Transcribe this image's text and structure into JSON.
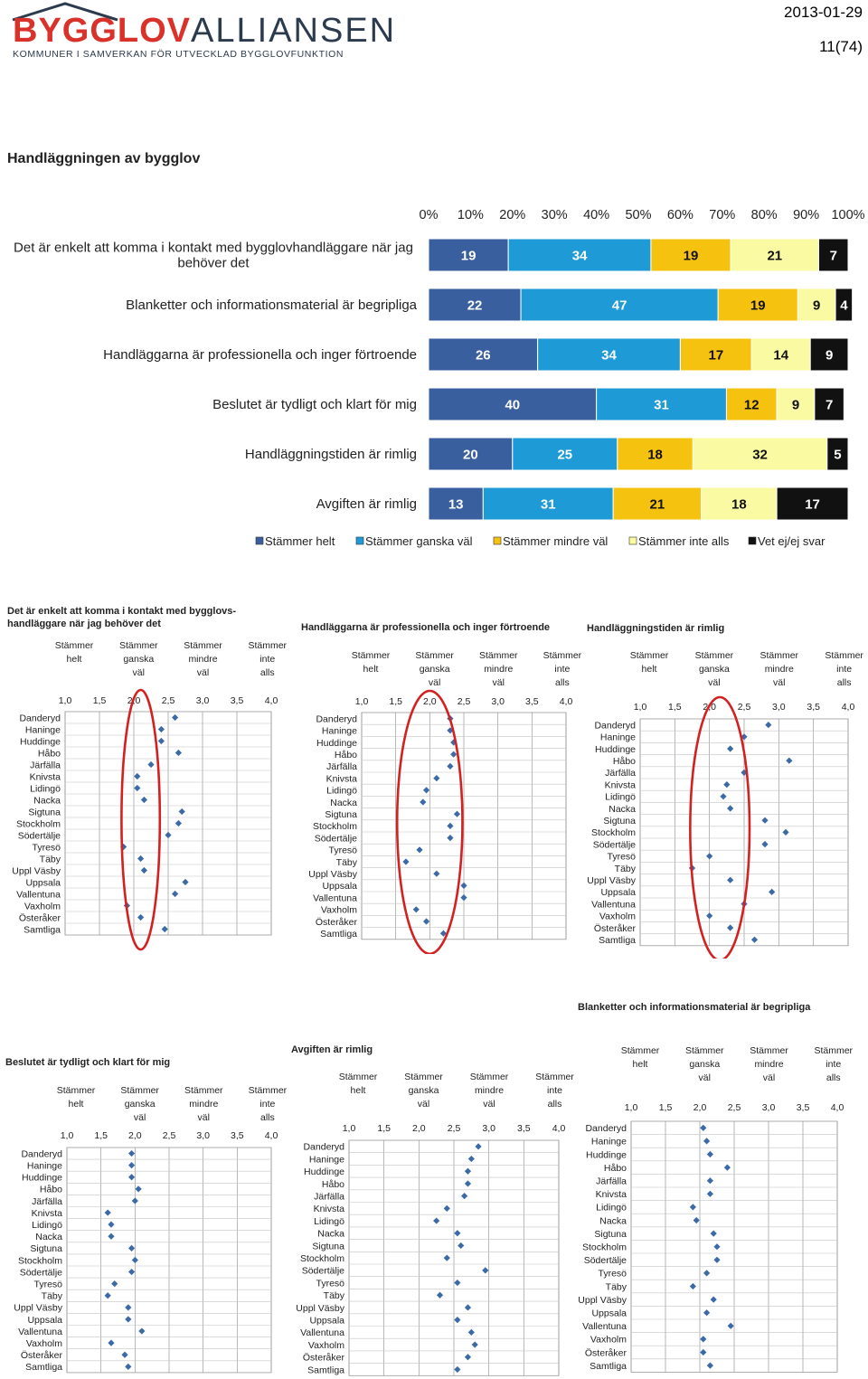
{
  "header": {
    "logo_part1": "BYGGLOV",
    "logo_part2": "ALLIANSEN",
    "logo_tagline": "KOMMUNER I SAMVERKAN FÖR UTVECKLAD BYGGLOVFUNKTION",
    "date": "2013-01-29",
    "page": "11(74)"
  },
  "section_title": "Handläggningen av bygglov",
  "chart_data": [
    {
      "type": "bar",
      "orientation": "horizontal-stacked-100",
      "x_ticks": [
        "0%",
        "10%",
        "20%",
        "30%",
        "40%",
        "50%",
        "60%",
        "70%",
        "80%",
        "90%",
        "100%"
      ],
      "xlim": [
        0,
        100
      ],
      "categories": [
        "Det är enkelt att komma i kontakt med bygglovhandläggare när jag|behöver det",
        "Blanketter och informationsmaterial är begripliga",
        "Handläggarna är professionella och inger förtroende",
        "Beslutet är tydligt och klart för mig",
        "Handläggningstiden är rimlig",
        "Avgiften är rimlig"
      ],
      "series": [
        {
          "name": "Stämmer helt",
          "color": "#3a5f9e",
          "values": [
            19,
            22,
            26,
            40,
            20,
            13
          ]
        },
        {
          "name": "Stämmer ganska väl",
          "color": "#1e9bd6",
          "values": [
            34,
            47,
            34,
            31,
            25,
            31
          ]
        },
        {
          "name": "Stämmer mindre väl",
          "color": "#f5c20f",
          "values": [
            19,
            19,
            17,
            12,
            18,
            21
          ]
        },
        {
          "name": "Stämmer inte alls",
          "color": "#fafaa2",
          "values": [
            21,
            9,
            14,
            9,
            32,
            18
          ]
        },
        {
          "name": "Vet ej/ej svar",
          "color": "#111111",
          "values": [
            7,
            4,
            9,
            7,
            5,
            17
          ]
        }
      ],
      "legend": "bottom"
    },
    {
      "type": "scatter",
      "title": "Det är enkelt att komma i kontakt med bygglovs-|handläggare när jag behöver det",
      "scale_labels": [
        "Stämmer|helt",
        "Stämmer|ganska|väl",
        "Stämmer|mindre|väl",
        "Stämmer|inte|alls"
      ],
      "x_ticks": [
        "1,0",
        "1,5",
        "2,0",
        "2,5",
        "3,0",
        "3,5",
        "4,0"
      ],
      "xlim": [
        1,
        4
      ],
      "categories": [
        "Danderyd",
        "Haninge",
        "Huddinge",
        "Håbo",
        "Järfälla",
        "Knivsta",
        "Lidingö",
        "Nacka",
        "Sigtuna",
        "Stockholm",
        "Södertälje",
        "Tyresö",
        "Täby",
        "Uppl Väsby",
        "Uppsala",
        "Vallentuna",
        "Vaxholm",
        "Österåker",
        "Samtliga"
      ],
      "values": [
        2.6,
        2.4,
        2.4,
        2.65,
        2.25,
        2.05,
        2.05,
        2.15,
        2.7,
        2.65,
        2.5,
        1.85,
        2.1,
        2.15,
        2.75,
        2.6,
        1.9,
        2.1,
        2.45
      ],
      "highlight": [
        1.9,
        2.3
      ]
    },
    {
      "type": "scatter",
      "title": "Handläggarna är professionella och inger förtroende",
      "scale_labels": [
        "Stämmer|helt",
        "Stämmer|ganska|väl",
        "Stämmer|mindre|väl",
        "Stämmer|inte|alls"
      ],
      "x_ticks": [
        "1,0",
        "1,5",
        "2,0",
        "2,5",
        "3,0",
        "3,5",
        "4,0"
      ],
      "xlim": [
        1,
        4
      ],
      "categories": [
        "Danderyd",
        "Haninge",
        "Huddinge",
        "Håbo",
        "Järfälla",
        "Knivsta",
        "Lidingö",
        "Nacka",
        "Sigtuna",
        "Stockholm",
        "Södertälje",
        "Tyresö",
        "Täby",
        "Uppl Väsby",
        "Uppsala",
        "Vallentuna",
        "Vaxholm",
        "Österåker",
        "Samtliga"
      ],
      "values": [
        2.3,
        2.3,
        2.35,
        2.35,
        2.3,
        2.1,
        1.95,
        1.9,
        2.4,
        2.3,
        2.3,
        1.85,
        1.65,
        2.1,
        2.5,
        2.5,
        1.8,
        1.95,
        2.2
      ],
      "highlight": [
        1.6,
        2.4
      ]
    },
    {
      "type": "scatter",
      "title": "Handläggningstiden är rimlig",
      "scale_labels": [
        "Stämmer|helt",
        "Stämmer|ganska|väl",
        "Stämmer|mindre|väl",
        "Stämmer|inte|alls"
      ],
      "x_ticks": [
        "1,0",
        "1,5",
        "2,0",
        "2,5",
        "3,0",
        "3,5",
        "4,0"
      ],
      "xlim": [
        1,
        4
      ],
      "categories": [
        "Danderyd",
        "Haninge",
        "Huddinge",
        "Håbo",
        "Järfälla",
        "Knivsta",
        "Lidingö",
        "Nacka",
        "Sigtuna",
        "Stockholm",
        "Södertälje",
        "Tyresö",
        "Täby",
        "Uppl Väsby",
        "Uppsala",
        "Vallentuna",
        "Vaxholm",
        "Österåker",
        "Samtliga"
      ],
      "values": [
        2.85,
        2.5,
        2.3,
        3.15,
        2.5,
        2.25,
        2.2,
        2.3,
        2.8,
        3.1,
        2.8,
        2.0,
        1.75,
        2.3,
        2.9,
        2.5,
        2.0,
        2.3,
        2.65
      ],
      "highlight": [
        1.8,
        2.5
      ]
    },
    {
      "type": "scatter",
      "title": "Beslutet är tydligt och klart för mig",
      "scale_labels": [
        "Stämmer|helt",
        "Stämmer|ganska|väl",
        "Stämmer|mindre|väl",
        "Stämmer|inte|alls"
      ],
      "x_ticks": [
        "1,0",
        "1,5",
        "2,0",
        "2,5",
        "3,0",
        "3,5",
        "4,0"
      ],
      "xlim": [
        1,
        4
      ],
      "categories": [
        "Danderyd",
        "Haninge",
        "Huddinge",
        "Håbo",
        "Järfälla",
        "Knivsta",
        "Lidingö",
        "Nacka",
        "Sigtuna",
        "Stockholm",
        "Södertälje",
        "Tyresö",
        "Täby",
        "Uppl Väsby",
        "Uppsala",
        "Vallentuna",
        "Vaxholm",
        "Österåker",
        "Samtliga"
      ],
      "values": [
        1.95,
        1.95,
        1.95,
        2.05,
        2.0,
        1.6,
        1.65,
        1.65,
        1.95,
        2.0,
        1.95,
        1.7,
        1.6,
        1.9,
        1.9,
        2.1,
        1.65,
        1.85,
        1.9
      ]
    },
    {
      "type": "scatter",
      "title": "Avgiften är rimlig",
      "scale_labels": [
        "Stämmer|helt",
        "Stämmer|ganska|väl",
        "Stämmer|mindre|väl",
        "Stämmer|inte|alls"
      ],
      "x_ticks": [
        "1,0",
        "1,5",
        "2,0",
        "2,5",
        "3,0",
        "3,5",
        "4,0"
      ],
      "xlim": [
        1,
        4
      ],
      "categories": [
        "Danderyd",
        "Haninge",
        "Huddinge",
        "Håbo",
        "Järfälla",
        "Knivsta",
        "Lidingö",
        "Nacka",
        "Sigtuna",
        "Stockholm",
        "Södertälje",
        "Tyresö",
        "Täby",
        "Uppl Väsby",
        "Uppsala",
        "Vallentuna",
        "Vaxholm",
        "Österåker",
        "Samtliga"
      ],
      "values": [
        2.85,
        2.75,
        2.7,
        2.7,
        2.65,
        2.4,
        2.25,
        2.55,
        2.6,
        2.4,
        2.95,
        2.55,
        2.3,
        2.7,
        2.55,
        2.75,
        2.8,
        2.7,
        2.55
      ]
    },
    {
      "type": "scatter",
      "title": "Blanketter och informationsmaterial är begripliga",
      "scale_labels": [
        "Stämmer|helt",
        "Stämmer|ganska|väl",
        "Stämmer|mindre|väl",
        "Stämmer|inte|alls"
      ],
      "x_ticks": [
        "1,0",
        "1,5",
        "2,0",
        "2,5",
        "3,0",
        "3,5",
        "4,0"
      ],
      "xlim": [
        1,
        4
      ],
      "categories": [
        "Danderyd",
        "Haninge",
        "Huddinge",
        "Håbo",
        "Järfälla",
        "Knivsta",
        "Lidingö",
        "Nacka",
        "Sigtuna",
        "Stockholm",
        "Södertälje",
        "Tyresö",
        "Täby",
        "Uppl Väsby",
        "Uppsala",
        "Vallentuna",
        "Vaxholm",
        "Österåker",
        "Samtliga"
      ],
      "values": [
        2.05,
        2.1,
        2.15,
        2.4,
        2.15,
        2.15,
        1.9,
        1.95,
        2.2,
        2.25,
        2.25,
        2.1,
        1.9,
        2.2,
        2.1,
        2.45,
        2.05,
        2.05,
        2.15
      ]
    }
  ],
  "colors": {
    "highlight_ellipse": "#d32020",
    "marker": "#3b6aa6",
    "gridline": "#999999"
  }
}
